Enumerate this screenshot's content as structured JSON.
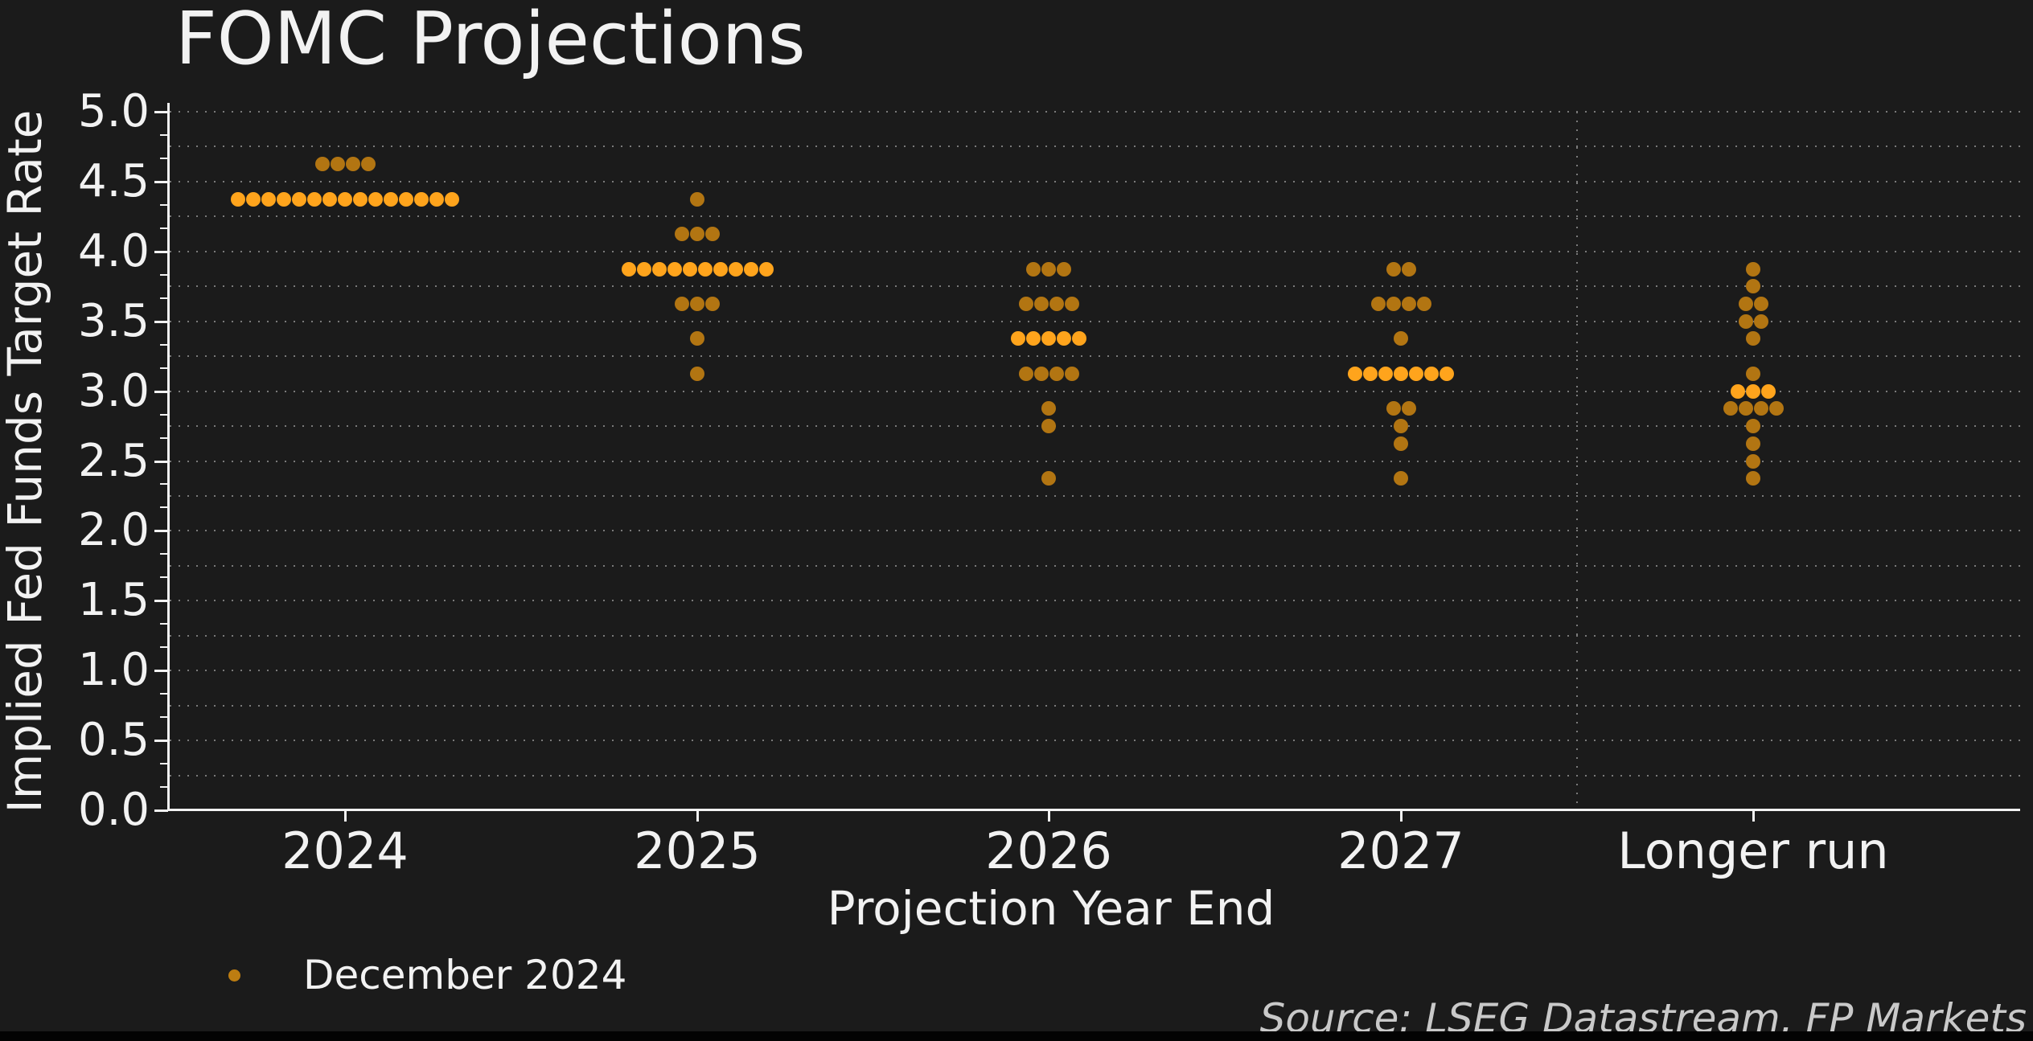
{
  "source": "Source: LSEG Datastream, FP Markets",
  "colors": {
    "background": "#1b1b1b",
    "dot": "#b27512",
    "dot_median": "#ffa41c",
    "legend_marker": "#bd7d11",
    "gridline": "#7a7a7a",
    "axis": "#f2f2f2",
    "text": "#f2f2f2",
    "source_text": "#c9c9c9"
  },
  "legend": {
    "label": "December 2024",
    "marker": "orange-dot"
  },
  "chart_data": {
    "type": "scatter",
    "subtype": "fomc-dot-plot",
    "title": "FOMC Projections",
    "xlabel": "Projection Year End",
    "ylabel": "Implied Fed Funds Target Rate",
    "ylim": [
      0.0,
      5.0
    ],
    "ytick_step": 0.5,
    "ytick_labels": [
      "0.0",
      "0.5",
      "1.0",
      "1.5",
      "2.0",
      "2.5",
      "3.0",
      "3.5",
      "4.0",
      "4.5",
      "5.0"
    ],
    "grid": "dotted horizontal lines every 0.25, vertical dotted separator before Longer run",
    "legend_position": "lower left",
    "categories": [
      "2024",
      "2025",
      "2026",
      "2027",
      "Longer run"
    ],
    "series": [
      {
        "name": "December 2024",
        "columns": [
          {
            "category": "2024",
            "dots": [
              {
                "rate": 4.625,
                "count": 4
              },
              {
                "rate": 4.375,
                "count": 15,
                "median": true
              }
            ]
          },
          {
            "category": "2025",
            "dots": [
              {
                "rate": 4.375,
                "count": 1
              },
              {
                "rate": 4.125,
                "count": 3
              },
              {
                "rate": 3.875,
                "count": 10,
                "median": true
              },
              {
                "rate": 3.625,
                "count": 3
              },
              {
                "rate": 3.375,
                "count": 1
              },
              {
                "rate": 3.125,
                "count": 1
              }
            ]
          },
          {
            "category": "2026",
            "dots": [
              {
                "rate": 3.875,
                "count": 3
              },
              {
                "rate": 3.625,
                "count": 4
              },
              {
                "rate": 3.375,
                "count": 5,
                "median": true
              },
              {
                "rate": 3.125,
                "count": 4
              },
              {
                "rate": 2.875,
                "count": 1
              },
              {
                "rate": 2.75,
                "count": 1
              },
              {
                "rate": 2.375,
                "count": 1
              }
            ]
          },
          {
            "category": "2027",
            "dots": [
              {
                "rate": 3.875,
                "count": 2
              },
              {
                "rate": 3.625,
                "count": 4
              },
              {
                "rate": 3.375,
                "count": 1
              },
              {
                "rate": 3.125,
                "count": 7,
                "median": true
              },
              {
                "rate": 2.875,
                "count": 2
              },
              {
                "rate": 2.75,
                "count": 1
              },
              {
                "rate": 2.625,
                "count": 1
              },
              {
                "rate": 2.375,
                "count": 1
              }
            ]
          },
          {
            "category": "Longer run",
            "dots": [
              {
                "rate": 3.875,
                "count": 1
              },
              {
                "rate": 3.75,
                "count": 1
              },
              {
                "rate": 3.625,
                "count": 2
              },
              {
                "rate": 3.5,
                "count": 2
              },
              {
                "rate": 3.375,
                "count": 1
              },
              {
                "rate": 3.125,
                "count": 1
              },
              {
                "rate": 3.0,
                "count": 3,
                "median": true
              },
              {
                "rate": 2.875,
                "count": 4
              },
              {
                "rate": 2.75,
                "count": 1
              },
              {
                "rate": 2.625,
                "count": 1
              },
              {
                "rate": 2.5,
                "count": 1
              },
              {
                "rate": 2.375,
                "count": 1
              }
            ]
          }
        ]
      }
    ]
  }
}
